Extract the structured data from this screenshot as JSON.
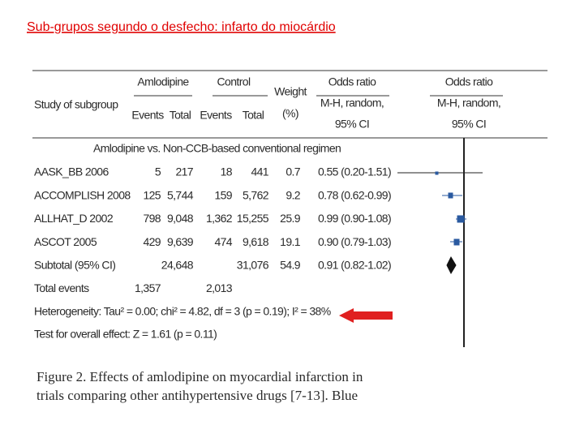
{
  "title": "Sub-grupos segundo o desfecho: infarto do miocárdio",
  "header": {
    "amlodipine": "Amlodipine",
    "control": "Control",
    "weight": [
      "Weight",
      "(%)"
    ],
    "odds_ratio": [
      "Odds ratio",
      "M-H, random,",
      "95% CI"
    ],
    "odds_ratio_plot": [
      "Odds ratio",
      "M-H, random,",
      "95% CI"
    ],
    "study": "Study of subgroup",
    "columns": [
      "Events",
      "Total",
      "Events",
      "Total"
    ]
  },
  "group": "Amlodipine vs. Non-CCB-based conventional regimen",
  "rows": [
    {
      "study": "AASK_BB 2006",
      "events_a": "5",
      "total_a": "217",
      "events_b": "18",
      "total_b": "441",
      "weight": "0.7",
      "or": "0.55 (0.20-1.51)"
    },
    {
      "study": "ACCOMPLISH 2008",
      "events_a": "125",
      "total_a": "5,744",
      "events_b": "159",
      "total_b": "5,762",
      "weight": "9.2",
      "or": "0.78 (0.62-0.99)"
    },
    {
      "study": "ALLHAT_D 2002",
      "events_a": "798",
      "total_a": "9,048",
      "events_b": "1,362",
      "total_b": "15,255",
      "weight": "25.9",
      "or": "0.99 (0.90-1.08)"
    },
    {
      "study": "ASCOT 2005",
      "events_a": "429",
      "total_a": "9,639",
      "events_b": "474",
      "total_b": "9,618",
      "weight": "19.1",
      "or": "0.90 (0.79-1.03)"
    },
    {
      "study": "Subtotal (95% CI)",
      "total_a": "24,648",
      "total_b": "31,076",
      "weight": "54.9",
      "or": "0.91 (0.82-1.02)"
    },
    {
      "study": "Total events",
      "events_a": "1,357",
      "events_b": "2,013"
    }
  ],
  "heterogeneity": "Heterogeneity: Tau² = 0.00; chi² = 4.82, df = 3 (p = 0.19); I² = 38%",
  "overall_effect": "Test for overall effect: Z = 1.61 (p = 0.11)",
  "caption": [
    "Figure 2. Effects of amlodipine on myocardial infarction in",
    "trials comparing other antihypertensive drugs [7-13]. Blue"
  ]
}
